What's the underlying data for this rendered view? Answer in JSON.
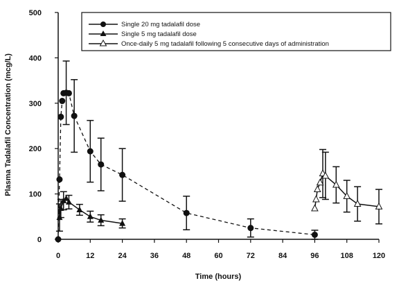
{
  "chart_data": {
    "type": "scatter",
    "xlabel": "Time (hours)",
    "ylabel": "Plasma Tadalafil Concentration (mcg/L)",
    "xlim": [
      0,
      120
    ],
    "ylim": [
      0,
      500
    ],
    "xticks": [
      0,
      12,
      24,
      36,
      48,
      60,
      72,
      84,
      96,
      108,
      120
    ],
    "yticks": [
      0,
      100,
      200,
      300,
      400,
      500
    ],
    "grid": false,
    "legend_position": "top-right",
    "series": [
      {
        "name": "Single 20 mg tadalafil dose",
        "marker": "filled-circle",
        "line_style": "dashed",
        "points": [
          {
            "x": 0,
            "y": 0,
            "err": null
          },
          {
            "x": 0.5,
            "y": 132,
            "err": null
          },
          {
            "x": 1,
            "y": 270,
            "err": null
          },
          {
            "x": 1.5,
            "y": 305,
            "err": null
          },
          {
            "x": 2,
            "y": 322,
            "err": null
          },
          {
            "x": 3,
            "y": 323,
            "err": 70
          },
          {
            "x": 4,
            "y": 322,
            "err": null
          },
          {
            "x": 6,
            "y": 272,
            "err": 80
          },
          {
            "x": 12,
            "y": 194,
            "err": 68
          },
          {
            "x": 16,
            "y": 165,
            "err": 58
          },
          {
            "x": 24,
            "y": 142,
            "err": 58
          },
          {
            "x": 48,
            "y": 58,
            "err": 37
          },
          {
            "x": 72,
            "y": 25,
            "err": 20
          },
          {
            "x": 96,
            "y": 10,
            "err": 10
          }
        ]
      },
      {
        "name": "Single 5 mg tadalafil dose",
        "marker": "filled-triangle",
        "line_style": "solid",
        "points": [
          {
            "x": 0.5,
            "y": 48,
            "err": 30
          },
          {
            "x": 1,
            "y": 68,
            "err": 20
          },
          {
            "x": 2,
            "y": 85,
            "err": 20
          },
          {
            "x": 3,
            "y": 90,
            "err": null
          },
          {
            "x": 4,
            "y": 82,
            "err": 15
          },
          {
            "x": 8,
            "y": 65,
            "err": 12
          },
          {
            "x": 12,
            "y": 50,
            "err": 12
          },
          {
            "x": 16,
            "y": 42,
            "err": 12
          },
          {
            "x": 24,
            "y": 35,
            "err": 10
          }
        ]
      },
      {
        "name": "Once-daily 5 mg tadalafil following 5 consecutive days of administration",
        "marker": "open-triangle",
        "line_style": "solid",
        "points": [
          {
            "x": 96,
            "y": 68,
            "err": null
          },
          {
            "x": 96.5,
            "y": 88,
            "err": null
          },
          {
            "x": 97,
            "y": 110,
            "err": null
          },
          {
            "x": 98,
            "y": 125,
            "err": null
          },
          {
            "x": 99,
            "y": 145,
            "err": 53
          },
          {
            "x": 100,
            "y": 140,
            "err": 52
          },
          {
            "x": 104,
            "y": 120,
            "err": 40
          },
          {
            "x": 108,
            "y": 95,
            "err": 35
          },
          {
            "x": 112,
            "y": 78,
            "err": 38
          },
          {
            "x": 120,
            "y": 72,
            "err": 38
          }
        ]
      }
    ]
  }
}
